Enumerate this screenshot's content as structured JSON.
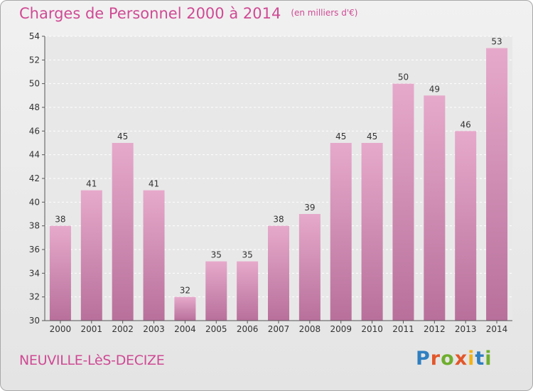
{
  "header": {
    "title": "Charges de Personnel 2000 à 2014",
    "unit": "(en milliers d'€)"
  },
  "footer": {
    "location": "NEUVILLE-LèS-DECIZE",
    "brand": "Proxiti"
  },
  "colors": {
    "title": "#cf4a94",
    "bar_top": "#e6a9cb",
    "bar_bottom": "#b8709b",
    "grid": "#ffffff",
    "plot_bg": "#e8e8e8",
    "axis_text": "#333333"
  },
  "chart_data": {
    "type": "bar",
    "title": "Charges de Personnel 2000 à 2014",
    "subtitle": "(en milliers d'€)",
    "xlabel": "",
    "ylabel": "",
    "categories": [
      "2000",
      "2001",
      "2002",
      "2003",
      "2004",
      "2005",
      "2006",
      "2007",
      "2008",
      "2009",
      "2010",
      "2011",
      "2012",
      "2013",
      "2014"
    ],
    "values": [
      38,
      41,
      45,
      41,
      32,
      35,
      35,
      38,
      39,
      45,
      45,
      50,
      49,
      46,
      53
    ],
    "ylim": [
      30,
      54
    ],
    "yticks": [
      30,
      32,
      34,
      36,
      38,
      40,
      42,
      44,
      46,
      48,
      50,
      52,
      54
    ],
    "grid": true,
    "legend": "none"
  }
}
